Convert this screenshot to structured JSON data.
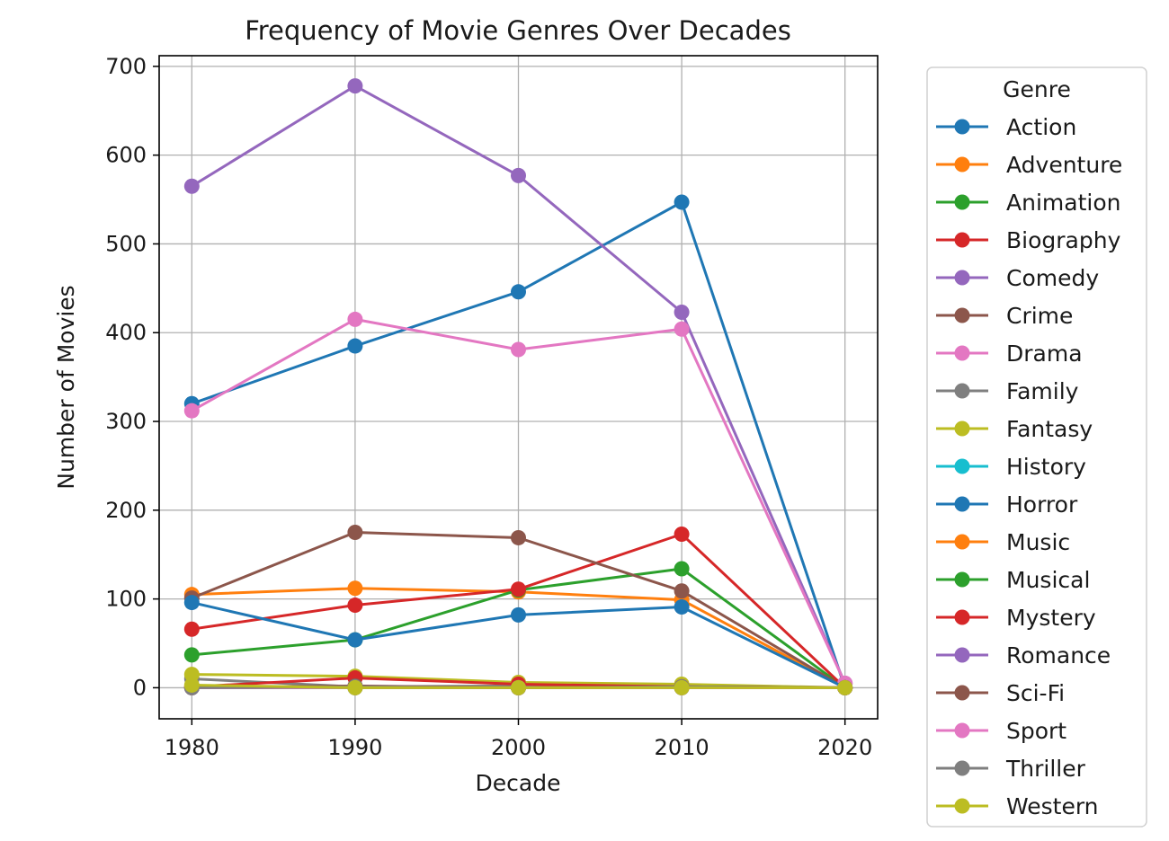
{
  "chart_data": {
    "type": "line",
    "title": "Frequency of Movie Genres Over Decades",
    "xlabel": "Decade",
    "ylabel": "Number of Movies",
    "x": [
      1980,
      1990,
      2000,
      2010,
      2020
    ],
    "x_ticks": [
      "1980",
      "1990",
      "2000",
      "2010",
      "2020"
    ],
    "y_ticks": [
      "0",
      "100",
      "200",
      "300",
      "400",
      "500",
      "600",
      "700"
    ],
    "xlim": [
      1978,
      2022
    ],
    "ylim": [
      -35,
      712
    ],
    "grid": true,
    "marker": "circle",
    "legend": {
      "title": "Genre",
      "position": "outside-right"
    },
    "series": [
      {
        "name": "Action",
        "color": "#1f77b4",
        "values": [
          320,
          385,
          446,
          547,
          0
        ]
      },
      {
        "name": "Adventure",
        "color": "#ff7f0e",
        "values": [
          105,
          112,
          108,
          99,
          0
        ]
      },
      {
        "name": "Animation",
        "color": "#2ca02c",
        "values": [
          37,
          54,
          110,
          134,
          0
        ]
      },
      {
        "name": "Biography",
        "color": "#d62728",
        "values": [
          66,
          93,
          111,
          173,
          0
        ]
      },
      {
        "name": "Comedy",
        "color": "#9467bd",
        "values": [
          565,
          678,
          577,
          423,
          5
        ]
      },
      {
        "name": "Crime",
        "color": "#8c564b",
        "values": [
          101,
          175,
          169,
          109,
          0
        ]
      },
      {
        "name": "Drama",
        "color": "#e377c2",
        "values": [
          312,
          415,
          381,
          404,
          5
        ]
      },
      {
        "name": "Family",
        "color": "#7f7f7f",
        "values": [
          10,
          1,
          2,
          2,
          0
        ]
      },
      {
        "name": "Fantasy",
        "color": "#bcbd22",
        "values": [
          15,
          13,
          6,
          4,
          0
        ]
      },
      {
        "name": "History",
        "color": "#17becf",
        "values": [
          0,
          0,
          0,
          0,
          0
        ]
      },
      {
        "name": "Horror",
        "color": "#1f77b4",
        "values": [
          96,
          54,
          82,
          91,
          0
        ]
      },
      {
        "name": "Music",
        "color": "#ff7f0e",
        "values": [
          1,
          1,
          0,
          1,
          0
        ]
      },
      {
        "name": "Musical",
        "color": "#2ca02c",
        "values": [
          0,
          0,
          0,
          0,
          0
        ]
      },
      {
        "name": "Mystery",
        "color": "#d62728",
        "values": [
          1,
          11,
          4,
          1,
          0
        ]
      },
      {
        "name": "Romance",
        "color": "#9467bd",
        "values": [
          0,
          1,
          0,
          0,
          0
        ]
      },
      {
        "name": "Sci-Fi",
        "color": "#8c564b",
        "values": [
          0,
          2,
          0,
          1,
          0
        ]
      },
      {
        "name": "Sport",
        "color": "#e377c2",
        "values": [
          0,
          0,
          0,
          0,
          0
        ]
      },
      {
        "name": "Thriller",
        "color": "#7f7f7f",
        "values": [
          0,
          1,
          0,
          1,
          0
        ]
      },
      {
        "name": "Western",
        "color": "#bcbd22",
        "values": [
          3,
          0,
          0,
          0,
          0
        ]
      }
    ]
  }
}
